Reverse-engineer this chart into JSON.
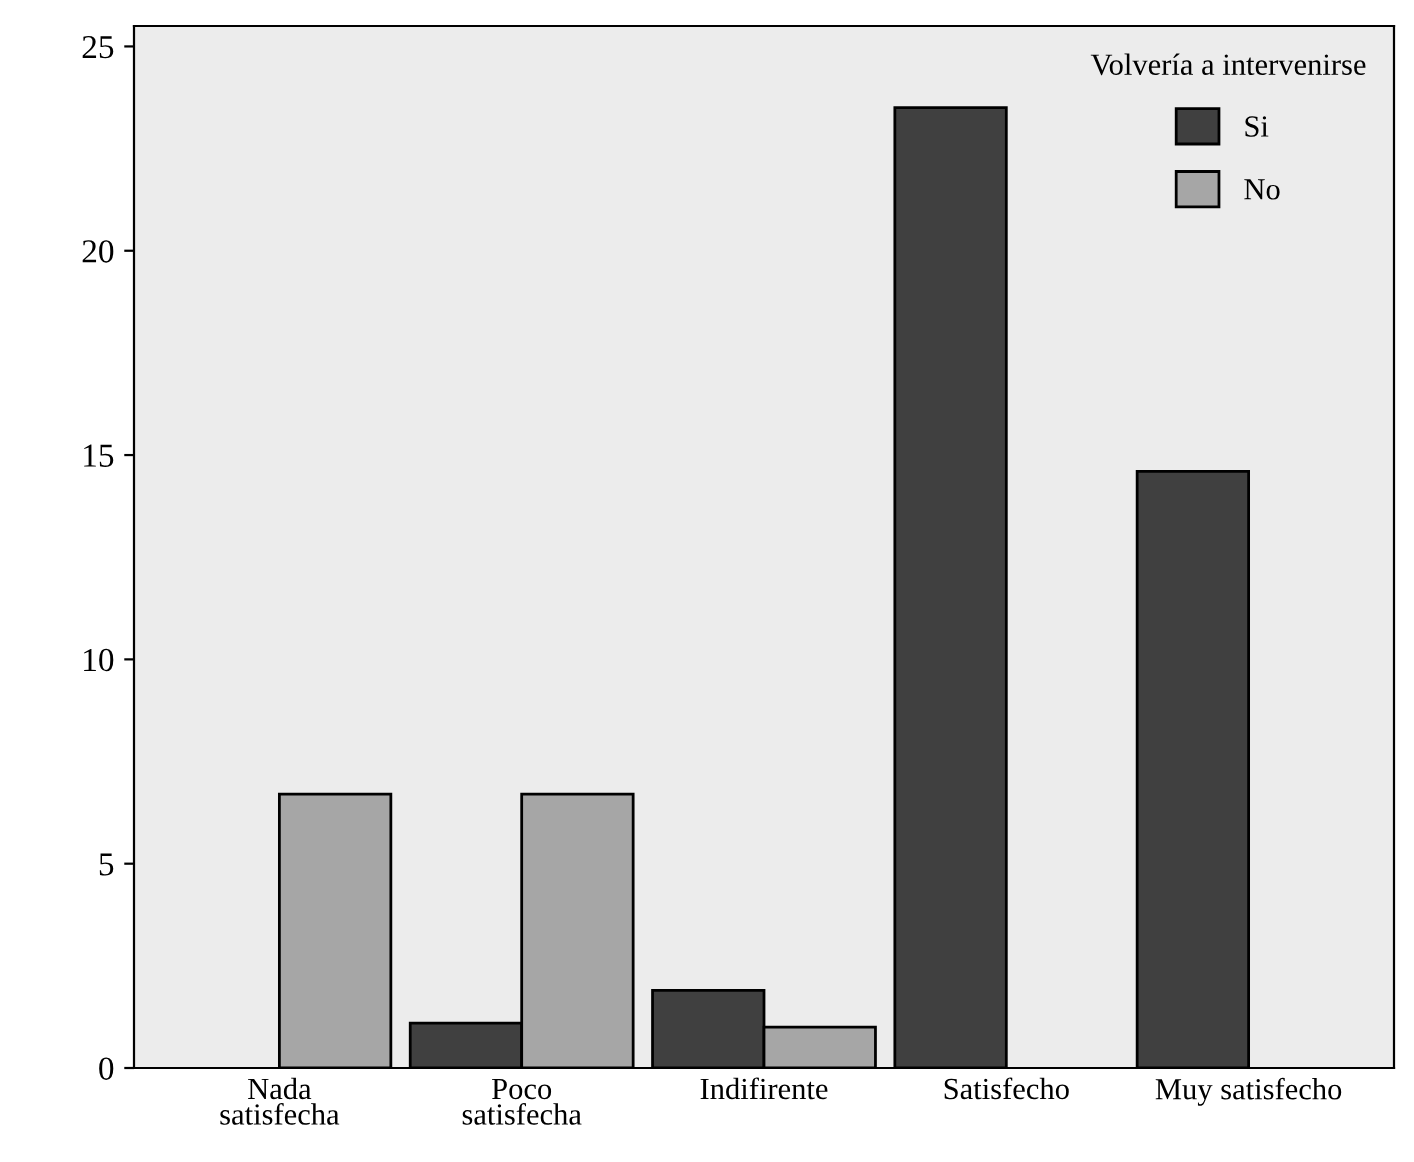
{
  "chart_data": {
    "type": "bar",
    "categories": [
      "Nada\nsatisfecha",
      "Poco\nsatisfecha",
      "Indifirente",
      "Satisfecho",
      "Muy satisfecho"
    ],
    "series": [
      {
        "name": "Si",
        "color": "#404040",
        "values": [
          null,
          1.1,
          1.9,
          23.5,
          14.6
        ]
      },
      {
        "name": "No",
        "color": "#a6a6a6",
        "values": [
          6.7,
          6.7,
          1.0,
          null,
          null
        ]
      }
    ],
    "legend_title": "Volvería a intervenirse",
    "legend": "top right",
    "ylim": [
      0,
      25.5
    ],
    "yticks": [
      0,
      5,
      10,
      15,
      20,
      25
    ],
    "grid": false
  }
}
